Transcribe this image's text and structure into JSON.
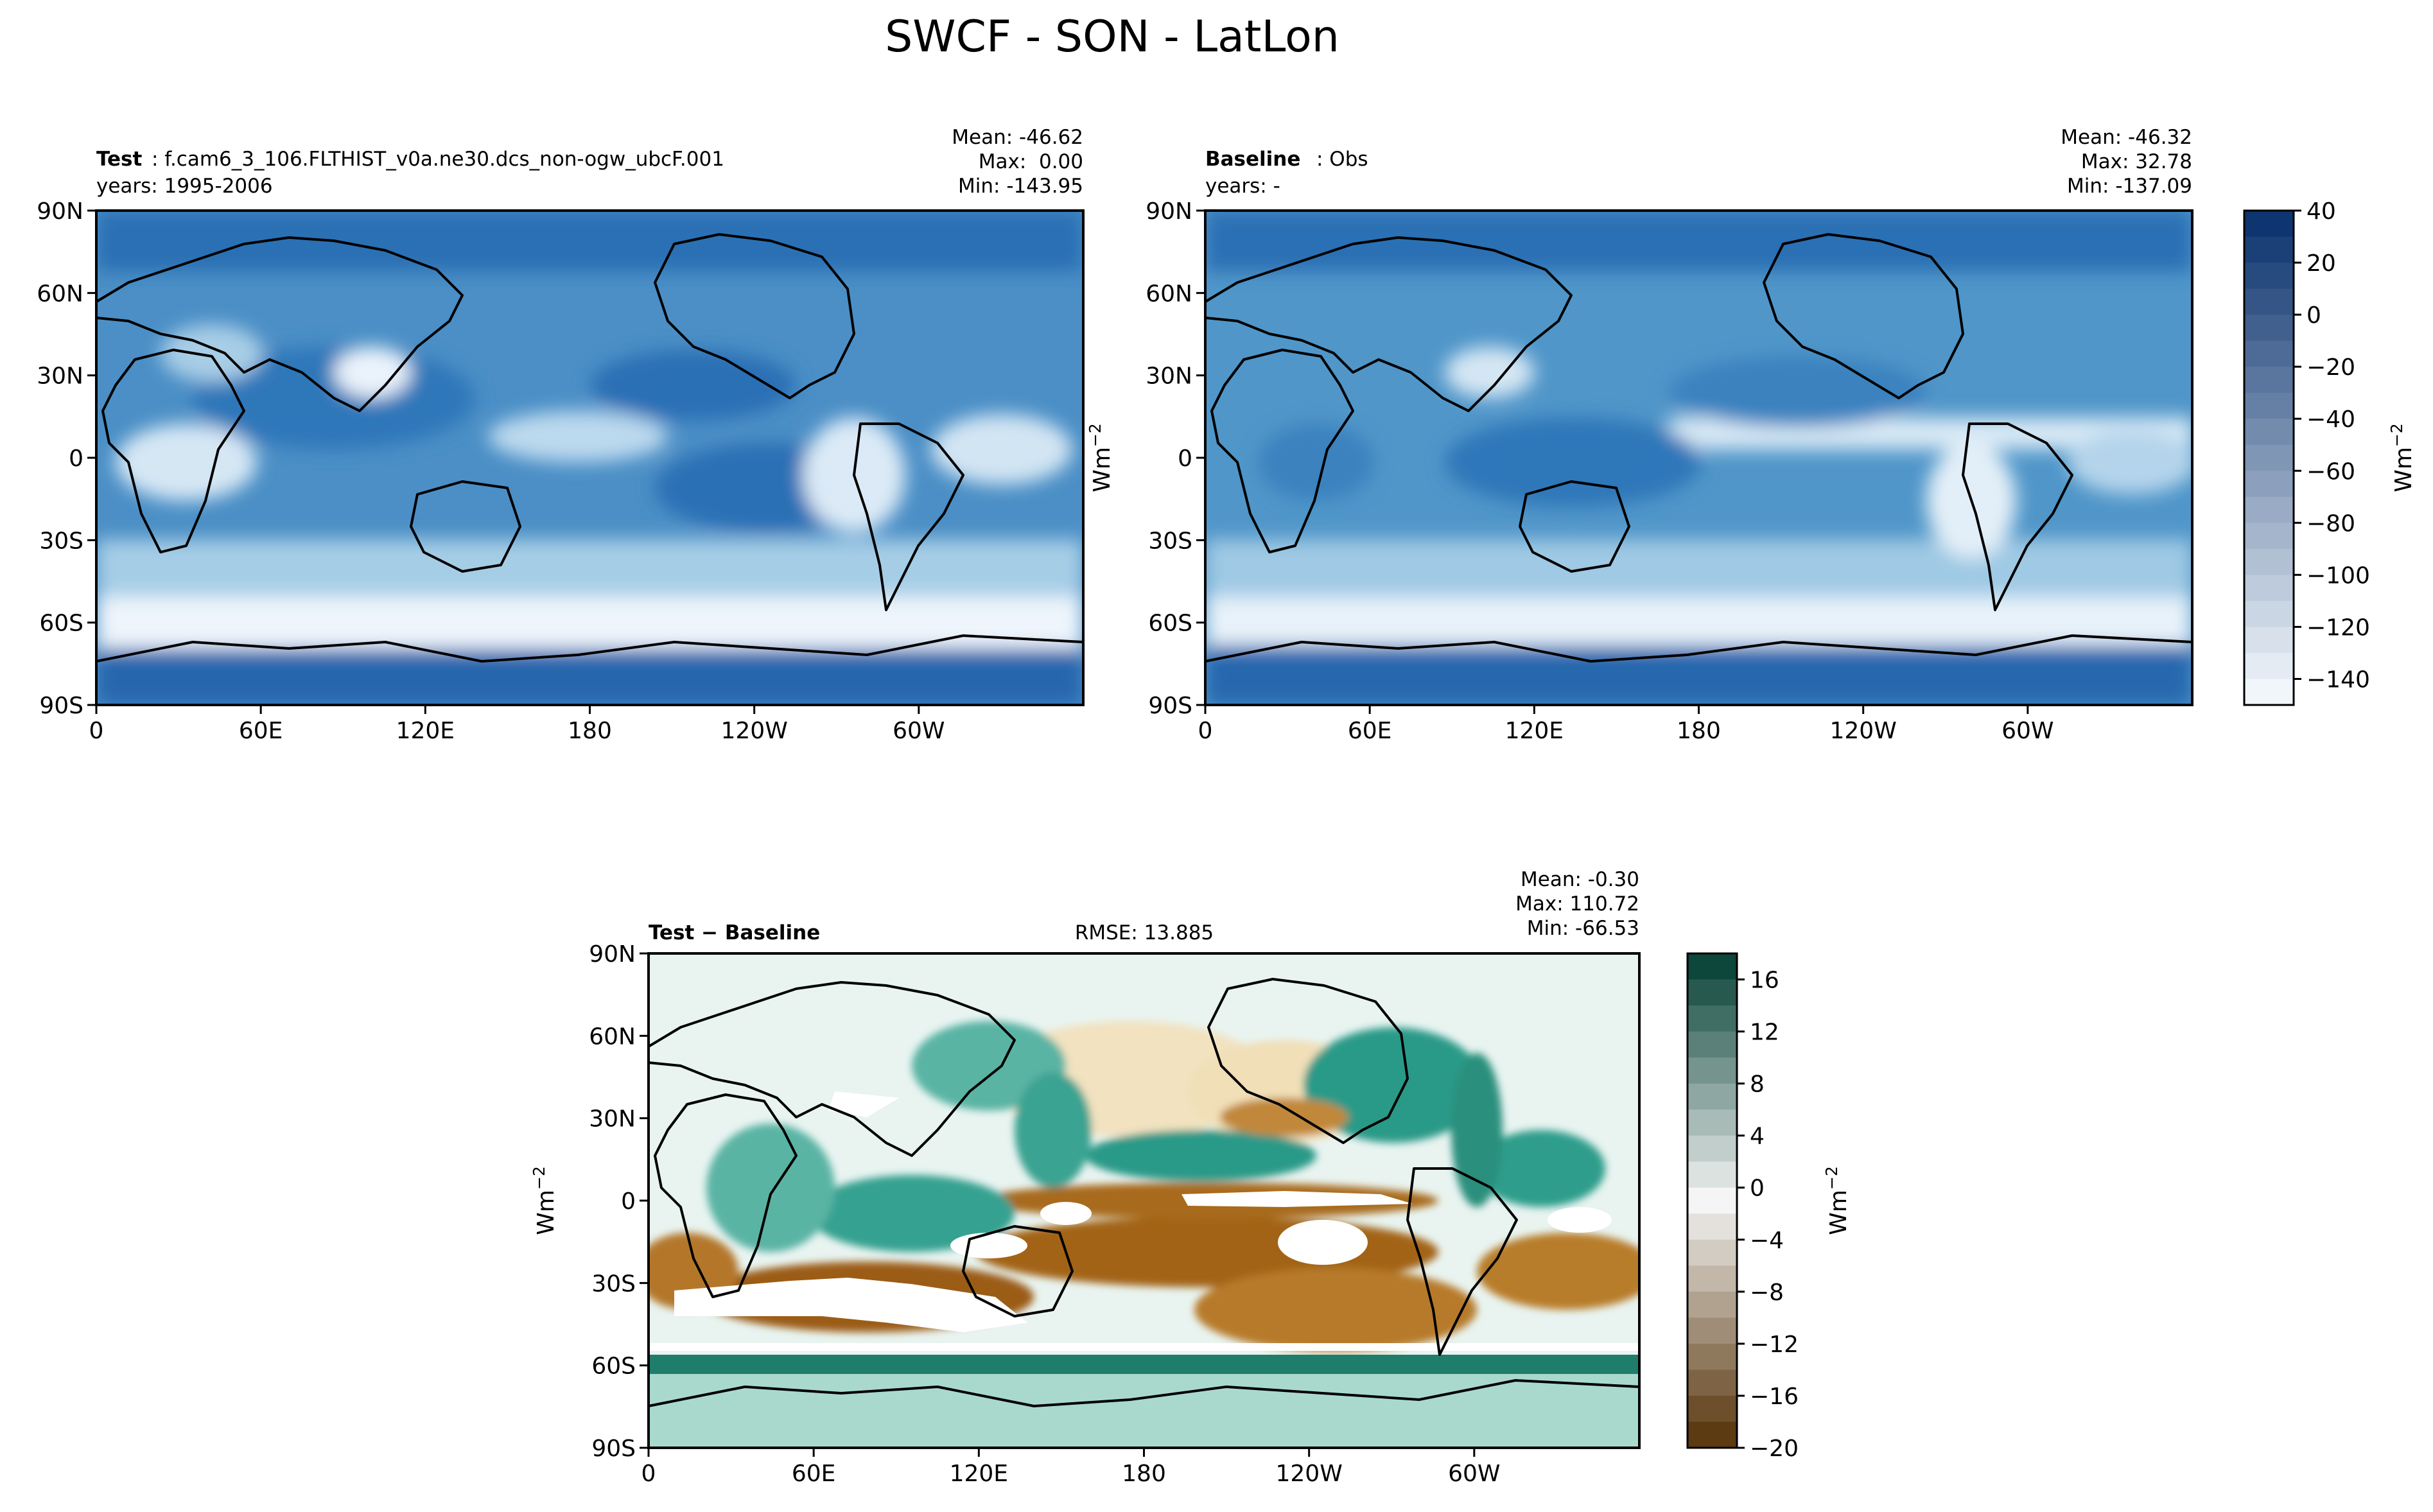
{
  "figure_title": "SWCF - SON - LatLon",
  "chart_data": [
    {
      "type": "heatmap",
      "panel": "test",
      "label_bold": "Test",
      "label_rest": ": f.cam6_3_106.FLTHIST_v0a.ne30.dcs_non-ogw_ubcF.001",
      "years": "years: 1995-2006",
      "stats": [
        "Mean: -46.62",
        "Max:  0.00",
        "Min: -143.95"
      ],
      "x_ticks": [
        "0",
        "60E",
        "120E",
        "180",
        "120W",
        "60W"
      ],
      "y_ticks": [
        "90N",
        "60N",
        "30N",
        "0",
        "30S",
        "60S",
        "90S"
      ],
      "xlim": [
        0,
        360
      ],
      "ylim": [
        -90,
        90
      ],
      "colormap": "Blues_r"
    },
    {
      "type": "heatmap",
      "panel": "baseline",
      "label_bold": "Baseline",
      "label_rest": ": Obs",
      "years": "years: -",
      "stats": [
        "Mean: -46.32",
        "Max: 32.78",
        "Min: -137.09"
      ],
      "x_ticks": [
        "0",
        "60E",
        "120E",
        "180",
        "120W",
        "60W"
      ],
      "y_ticks": [
        "90N",
        "60N",
        "30N",
        "0",
        "30S",
        "60S",
        "90S"
      ],
      "xlim": [
        0,
        360
      ],
      "ylim": [
        -90,
        90
      ],
      "ylabel": "Wm",
      "ylabel_sup": "−2",
      "colormap": "Blues_r"
    },
    {
      "type": "heatmap",
      "panel": "difference",
      "label_bold": "Test − Baseline",
      "rmse": "RMSE: 13.885",
      "stats": [
        "Mean: -0.30",
        "Max: 110.72",
        "Min: -66.53"
      ],
      "x_ticks": [
        "0",
        "60E",
        "120E",
        "180",
        "120W",
        "60W"
      ],
      "y_ticks": [
        "90N",
        "60N",
        "30N",
        "0",
        "30S",
        "60S",
        "90S"
      ],
      "xlim": [
        0,
        360
      ],
      "ylim": [
        -90,
        90
      ],
      "ylabel": "Wm",
      "ylabel_sup": "−2",
      "colormap": "BrBG"
    }
  ],
  "colorbar_top": {
    "ticks": [
      "40",
      "20",
      "0",
      "−20",
      "−40",
      "−60",
      "−80",
      "−100",
      "−120",
      "−140"
    ],
    "tick_values": [
      40,
      20,
      0,
      -20,
      -40,
      -60,
      -80,
      -100,
      -120,
      -140
    ],
    "range": [
      -150,
      40
    ],
    "levels": 19,
    "label": "Wm",
    "label_sup": "−2",
    "colors": [
      "#f7fbff",
      "#08306b"
    ]
  },
  "colorbar_diff": {
    "ticks": [
      "16",
      "12",
      "8",
      "4",
      "0",
      "−4",
      "−8",
      "−12",
      "−16",
      "−20"
    ],
    "tick_values": [
      16,
      12,
      8,
      4,
      0,
      -4,
      -8,
      -12,
      -16,
      -20
    ],
    "range": [
      -20,
      18
    ],
    "levels": 19,
    "label": "Wm",
    "label_sup": "−2",
    "colors": [
      "#543005",
      "#f5f5f5",
      "#003c30"
    ]
  }
}
